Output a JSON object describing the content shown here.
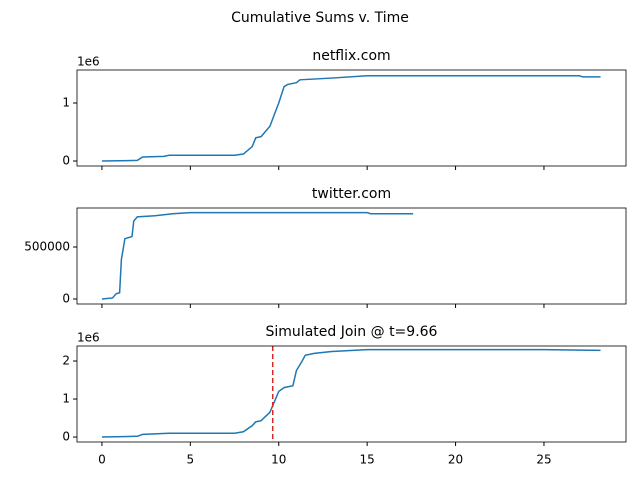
{
  "title": "Cumulative Sums v. Time",
  "chart_data": [
    {
      "type": "line",
      "title": "netflix.com",
      "y_offset_label": "1e6",
      "xlim": [
        -1.41,
        29.64
      ],
      "xticks": [
        0,
        5,
        10,
        15,
        20,
        25
      ],
      "xtick_labels": false,
      "ylim": [
        -86000,
        1569000
      ],
      "yticks": [
        0,
        {
          "value": 1000000,
          "label": "1"
        }
      ],
      "series": [
        {
          "color": "#1f77b4",
          "x": [
            0,
            2,
            2.3,
            3.5,
            3.8,
            7.5,
            8,
            8.5,
            8.7,
            9,
            9.5,
            10,
            10.3,
            10.5,
            11,
            11.2,
            13,
            15,
            20,
            27,
            27.2,
            28.2
          ],
          "values": [
            0,
            10000,
            70000,
            80000,
            100000,
            100000,
            120000,
            250000,
            400000,
            420000,
            600000,
            1000000,
            1280000,
            1320000,
            1350000,
            1400000,
            1430000,
            1470000,
            1470000,
            1470000,
            1450000,
            1450000
          ]
        }
      ]
    },
    {
      "type": "line",
      "title": "twitter.com",
      "xlim": [
        -1.41,
        29.64
      ],
      "xticks": [
        0,
        5,
        10,
        15,
        20,
        25
      ],
      "xtick_labels": false,
      "ylim": [
        -48000,
        875000
      ],
      "yticks": [
        0,
        500000
      ],
      "series": [
        {
          "color": "#1f77b4",
          "x": [
            0,
            0.6,
            0.8,
            1.0,
            1.1,
            1.3,
            1.7,
            1.8,
            2,
            3,
            4,
            5,
            15,
            15.2,
            17.6
          ],
          "values": [
            0,
            10000,
            50000,
            60000,
            380000,
            580000,
            600000,
            750000,
            790000,
            800000,
            820000,
            830000,
            830000,
            820000,
            820000
          ]
        }
      ]
    },
    {
      "type": "line",
      "title": "Simulated Join @ t=9.66",
      "y_offset_label": "1e6",
      "xlim": [
        -1.41,
        29.64
      ],
      "xticks": [
        0,
        5,
        10,
        15,
        20,
        25
      ],
      "xtick_labels": true,
      "ylim": [
        -130000,
        2395000
      ],
      "yticks": [
        0,
        {
          "value": 1000000,
          "label": "1"
        },
        {
          "value": 2000000,
          "label": "2"
        }
      ],
      "vline": {
        "x": 9.66,
        "color": "#d62728"
      },
      "series": [
        {
          "color": "#1f77b4",
          "x": [
            0,
            2,
            2.3,
            3.8,
            7.5,
            8,
            8.5,
            8.7,
            9,
            9.5,
            10,
            10.3,
            10.8,
            11,
            11.3,
            11.5,
            12,
            13,
            15,
            25,
            28.2
          ],
          "values": [
            0,
            20000,
            70000,
            100000,
            100000,
            140000,
            300000,
            400000,
            430000,
            650000,
            1200000,
            1300000,
            1350000,
            1750000,
            1980000,
            2150000,
            2200000,
            2250000,
            2300000,
            2300000,
            2280000
          ]
        }
      ]
    }
  ]
}
